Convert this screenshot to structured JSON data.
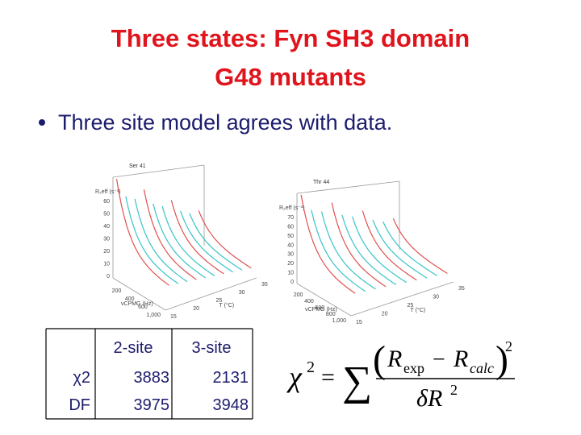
{
  "header": {
    "title_lines": [
      "Three states: Fyn SH3 domain",
      "G48 mutants"
    ]
  },
  "bullets": [
    "Three site model agrees with data."
  ],
  "panels": [
    {
      "label": "Ser 41",
      "y_axis_label": "R₂eff (s⁻¹)",
      "y_ticks": [
        "60",
        "50",
        "40",
        "30",
        "20",
        "10",
        "0"
      ],
      "x_axis_label": "νCPMG (Hz)",
      "x_ticks": [
        "200",
        "400",
        "600",
        "1,000"
      ],
      "t_axis_label": "T (°C)",
      "t_ticks": [
        "15",
        "20",
        "25",
        "30",
        "35"
      ]
    },
    {
      "label": "Thr 44",
      "y_axis_label": "R₂eff (s⁻¹)",
      "y_ticks": [
        "70",
        "60",
        "50",
        "40",
        "30",
        "20",
        "10",
        "0"
      ],
      "x_axis_label": "νCPMG (Hz)",
      "x_ticks": [
        "200",
        "400",
        "600",
        "800",
        "1,000"
      ],
      "t_axis_label": "T (°C)",
      "t_ticks": [
        "15",
        "20",
        "25",
        "30",
        "35"
      ]
    }
  ],
  "table": {
    "header": [
      "",
      "2-site",
      "3-site"
    ],
    "rows": [
      [
        "χ2",
        "3883",
        "2131"
      ],
      [
        "DF",
        "3975",
        "3948"
      ]
    ]
  },
  "formula": {
    "lhs": "χ",
    "lhs_sup": "2",
    "equals": "=",
    "sum": "∑",
    "open": "(",
    "r1": "R",
    "r1_sub": "exp",
    "minus": "−",
    "r2": "R",
    "r2_sub": "calc",
    "close": ")",
    "num_sup": "2",
    "den": "δR",
    "den_sup": "2"
  }
}
